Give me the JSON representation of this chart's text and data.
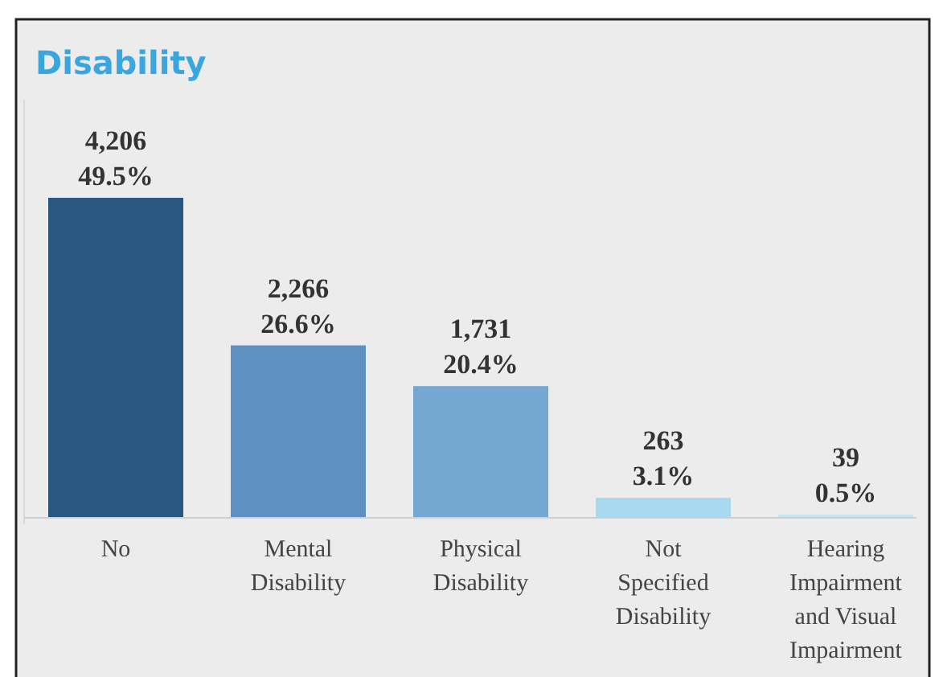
{
  "chart_data": {
    "type": "bar",
    "title": "Disability",
    "categories": [
      "No",
      "Mental Disability",
      "Physical Disability",
      "Not Specified Disability",
      "Hearing Impairment and Visual Impairment"
    ],
    "values": [
      4206,
      2266,
      1731,
      263,
      39
    ],
    "colors": [
      "#2a5782",
      "#5e90c1",
      "#74a8d3",
      "#a8d9f0",
      "#bfe4f4"
    ],
    "value_labels": [
      "4,206\n49.5%",
      "2,266\n26.6%",
      "1,731\n20.4%",
      "263\n3.1%",
      "39\n0.5%"
    ]
  }
}
